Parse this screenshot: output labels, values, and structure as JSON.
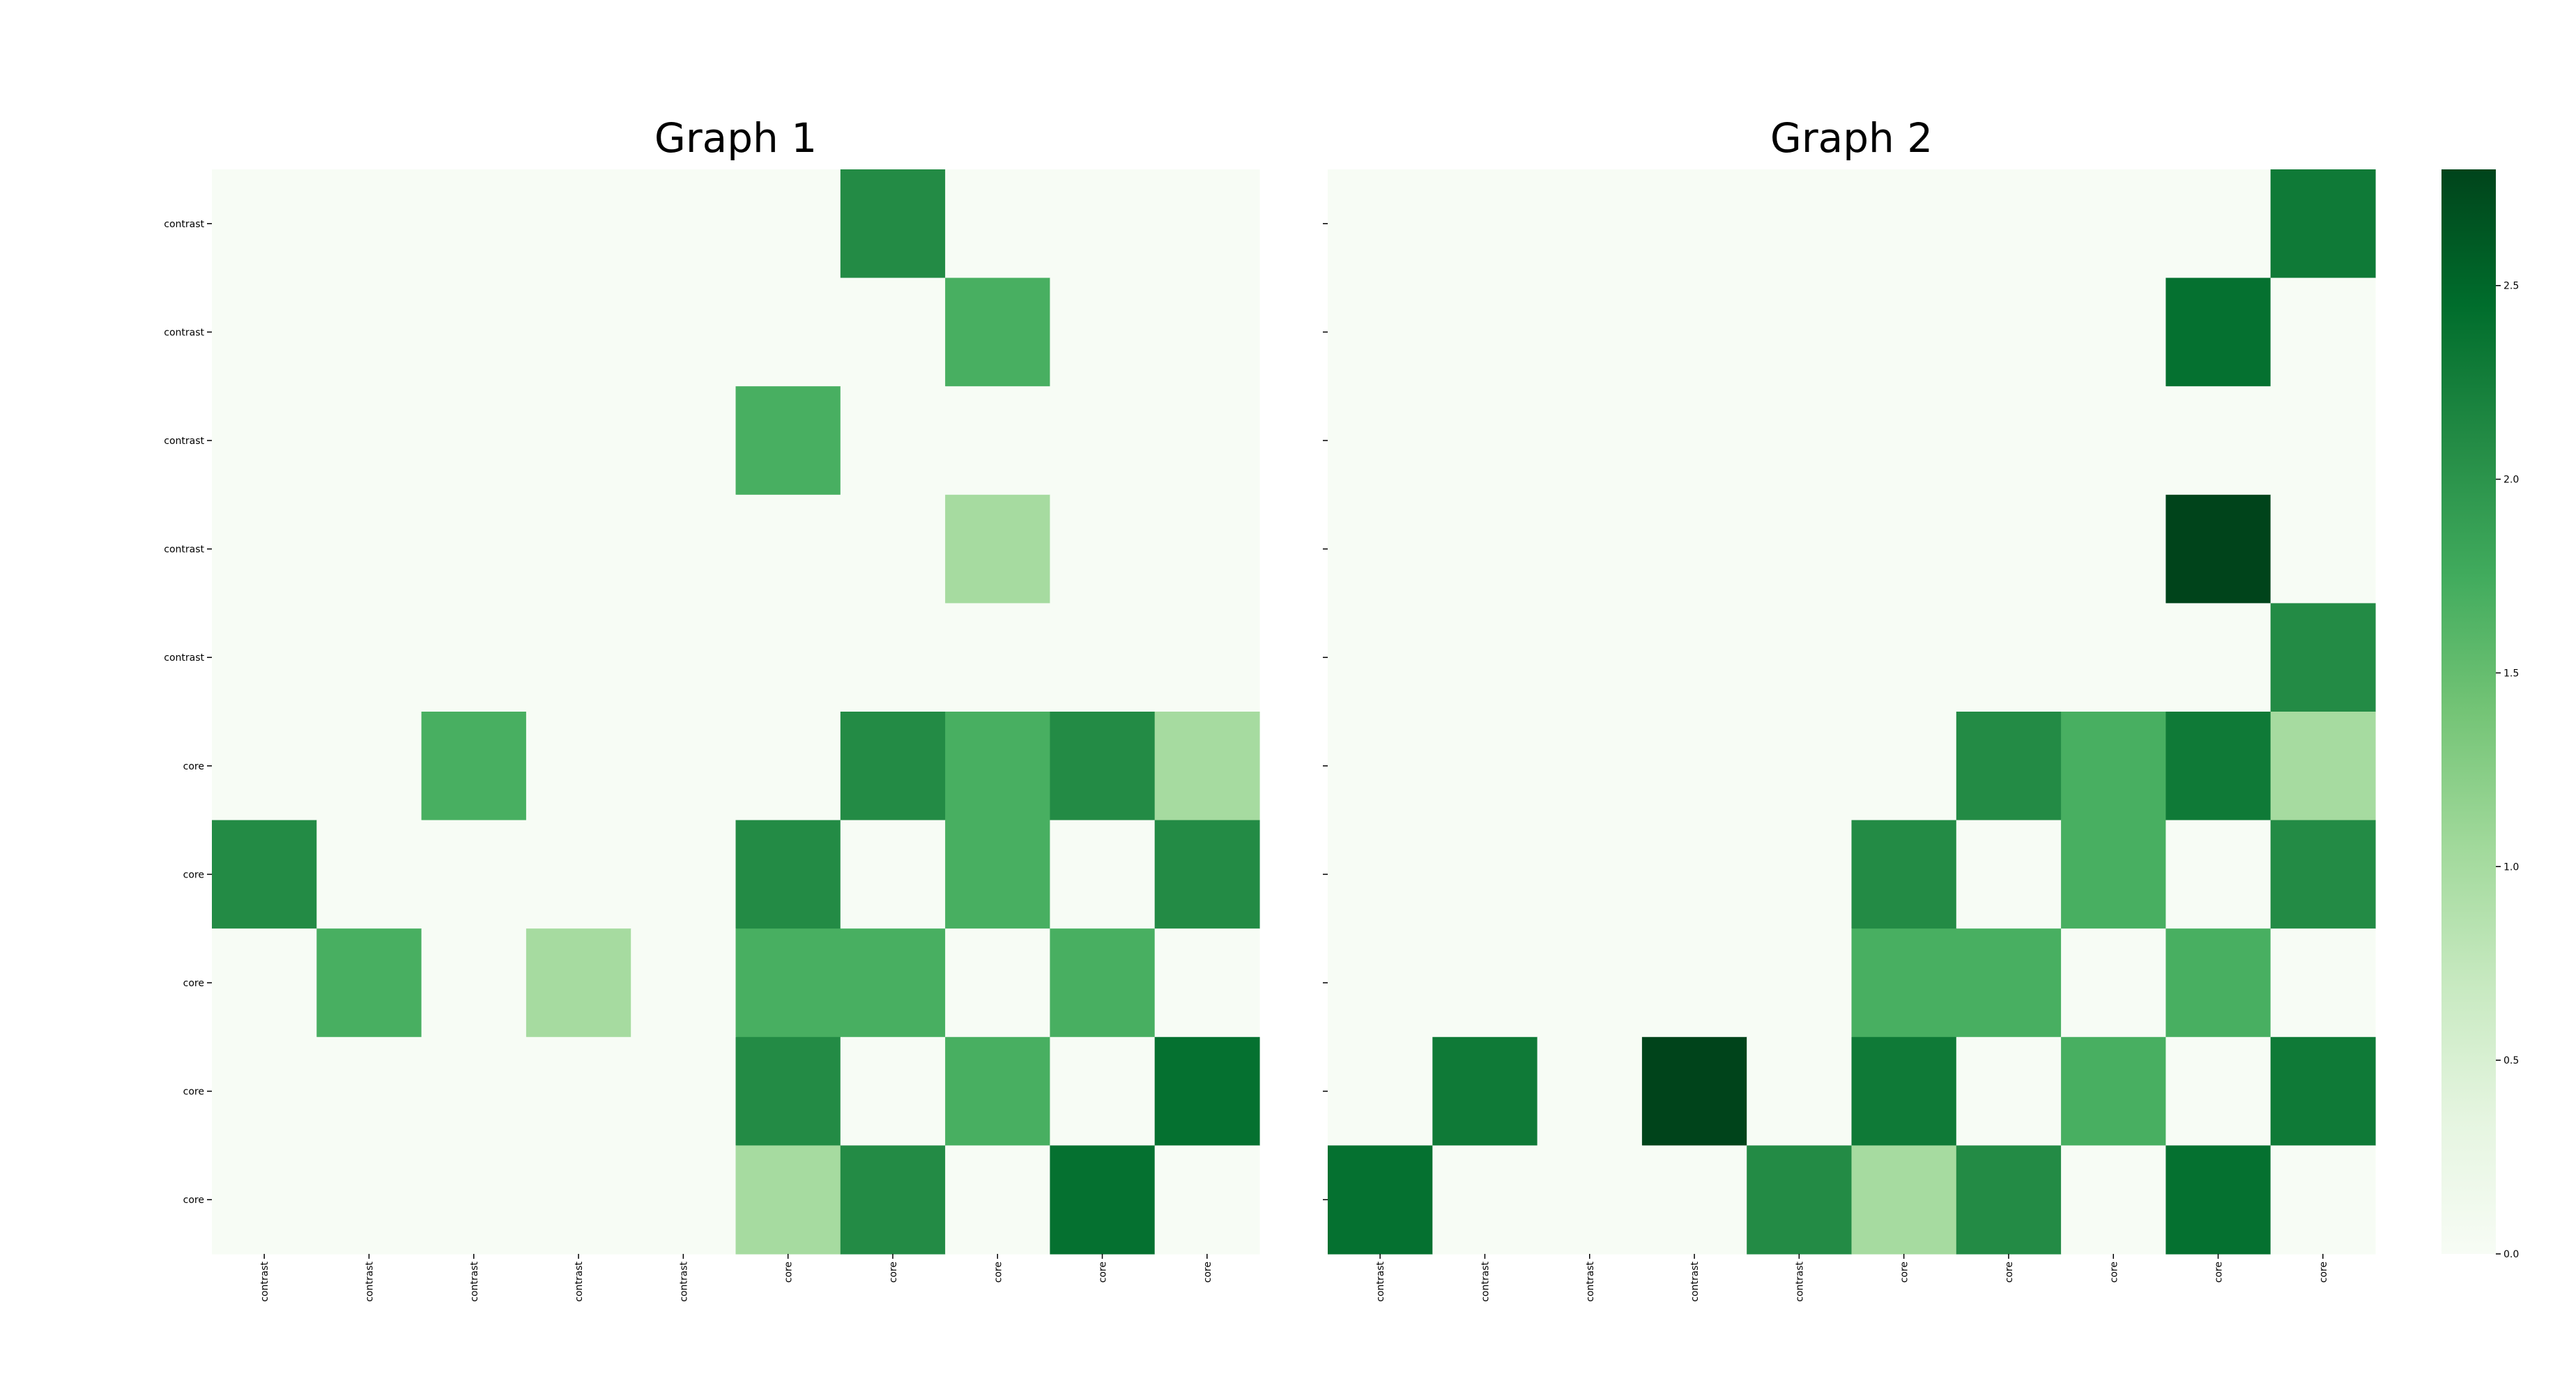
{
  "colors": {
    "scale_low": "#f7fcf5",
    "scale_high": "#00441b",
    "scale": "Greens"
  },
  "chart_data": [
    {
      "type": "heatmap",
      "title": "Graph 1",
      "x_tick_labels": [
        "contrast",
        "contrast",
        "contrast",
        "contrast",
        "contrast",
        "core",
        "core",
        "core",
        "core",
        "core"
      ],
      "y_tick_labels": [
        "contrast",
        "contrast",
        "contrast",
        "contrast",
        "contrast",
        "core",
        "core",
        "core",
        "core",
        "core"
      ],
      "values": [
        [
          0,
          0,
          0,
          0,
          0,
          0,
          2.1,
          0,
          0,
          0
        ],
        [
          0,
          0,
          0,
          0,
          0,
          0,
          0,
          1.7,
          0,
          0
        ],
        [
          0,
          0,
          0,
          0,
          0,
          1.7,
          0,
          0,
          0,
          0
        ],
        [
          0,
          0,
          0,
          0,
          0,
          0,
          0,
          1.0,
          0,
          0
        ],
        [
          0,
          0,
          0,
          0,
          0,
          0,
          0,
          0,
          0,
          0
        ],
        [
          0,
          0,
          1.7,
          0,
          0,
          0,
          2.1,
          1.7,
          2.1,
          1.0
        ],
        [
          2.1,
          0,
          0,
          0,
          0,
          2.1,
          0,
          1.7,
          0,
          2.1
        ],
        [
          0,
          1.7,
          0,
          1.0,
          0,
          1.7,
          1.7,
          0,
          1.7,
          0
        ],
        [
          0,
          0,
          0,
          0,
          0,
          2.1,
          0,
          1.7,
          0,
          2.4
        ],
        [
          0,
          0,
          0,
          0,
          0,
          1.0,
          2.1,
          0,
          2.4,
          0
        ]
      ]
    },
    {
      "type": "heatmap",
      "title": "Graph 2",
      "x_tick_labels": [
        "contrast",
        "contrast",
        "contrast",
        "contrast",
        "contrast",
        "core",
        "core",
        "core",
        "core",
        "core"
      ],
      "y_tick_labels": [
        "",
        "",
        "",
        "",
        "",
        "",
        "",
        "",
        "",
        ""
      ],
      "values": [
        [
          0,
          0,
          0,
          0,
          0,
          0,
          0,
          0,
          0,
          2.3
        ],
        [
          0,
          0,
          0,
          0,
          0,
          0,
          0,
          0,
          2.4,
          0
        ],
        [
          0,
          0,
          0,
          0,
          0,
          0,
          0,
          0,
          0,
          0
        ],
        [
          0,
          0,
          0,
          0,
          0,
          0,
          0,
          0,
          2.8,
          0
        ],
        [
          0,
          0,
          0,
          0,
          0,
          0,
          0,
          0,
          0,
          2.1
        ],
        [
          0,
          0,
          0,
          0,
          0,
          0,
          2.1,
          1.7,
          2.3,
          1.0
        ],
        [
          0,
          0,
          0,
          0,
          0,
          2.1,
          0,
          1.7,
          0,
          2.1
        ],
        [
          0,
          0,
          0,
          0,
          0,
          1.7,
          1.7,
          0,
          1.7,
          0
        ],
        [
          0,
          2.3,
          0,
          2.8,
          0,
          2.3,
          0,
          1.7,
          0,
          2.3
        ],
        [
          2.4,
          0,
          0,
          0,
          2.1,
          1.0,
          2.1,
          0,
          2.4,
          0
        ]
      ]
    }
  ],
  "colorbar": {
    "min": 0.0,
    "max": 2.8,
    "tick_values": [
      0.0,
      0.5,
      1.0,
      1.5,
      2.0,
      2.5
    ],
    "tick_labels": [
      "0.0",
      "0.5",
      "1.0",
      "1.5",
      "2.0",
      "2.5"
    ]
  }
}
